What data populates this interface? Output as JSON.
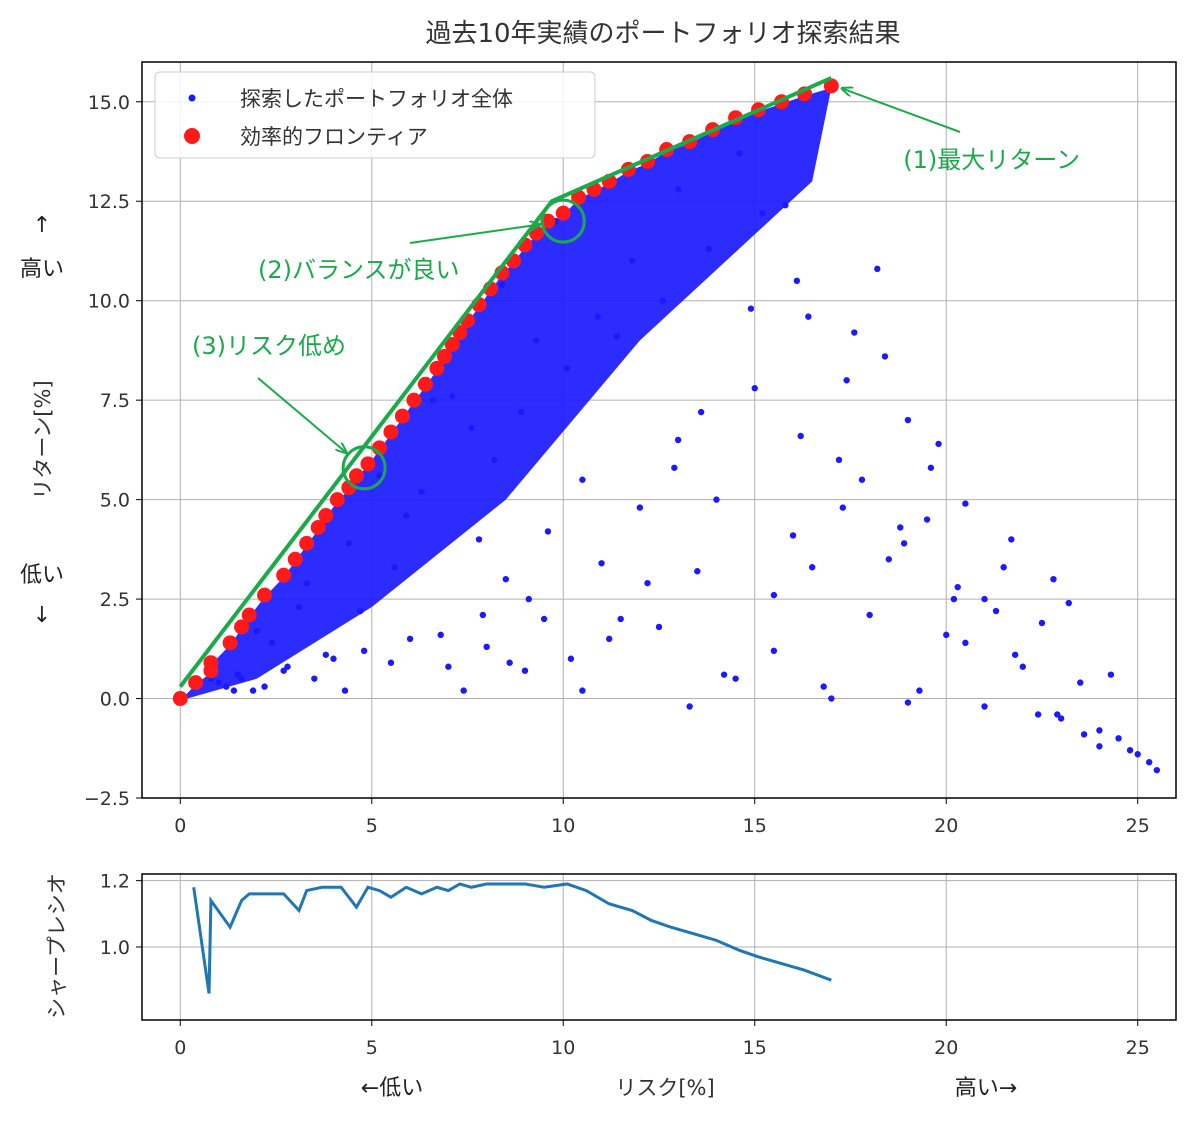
{
  "colors": {
    "scatter": "#1a1aff",
    "frontier": "#ff1a1a",
    "annotation": "#1aaa4a",
    "sharpe_line": "#1f77b4",
    "grid": "#b0b0b0",
    "axes": "#000000"
  },
  "chart_data": [
    {
      "type": "scatter",
      "title": "過去10年実績のポートフォリオ探索結果",
      "xlabel": "",
      "ylabel": "リターン[%]",
      "xlim": [
        -1,
        26
      ],
      "ylim": [
        -2.5,
        16
      ],
      "grid": true,
      "legend_position": "top-left",
      "x_ticks": [
        "0",
        "5",
        "10",
        "15",
        "20",
        "25"
      ],
      "y_ticks": [
        "−2.5",
        "0.0",
        "2.5",
        "5.0",
        "7.5",
        "10.0",
        "12.5",
        "15.0"
      ],
      "x_tick_values": [
        0,
        5,
        10,
        15,
        20,
        25
      ],
      "y_tick_values": [
        -2.5,
        0,
        2.5,
        5,
        7.5,
        10,
        12.5,
        15
      ],
      "series": [
        {
          "name": "探索したポートフォリオ全体",
          "marker": "small-dot",
          "x": [
            0.5,
            1.0,
            1.4,
            1.5,
            2.2,
            2.8,
            3.5,
            4.0,
            4.3,
            4.8,
            5.5,
            6.0,
            7.0,
            7.4,
            7.9,
            8.0,
            8.5,
            9.0,
            9.1,
            9.6,
            10.2,
            10.5,
            11.0,
            11.5,
            12.0,
            12.5,
            13.0,
            13.5,
            14.0,
            14.5,
            15.0,
            15.5,
            16.0,
            16.4,
            17.0,
            17.4,
            17.8,
            18.2,
            18.5,
            19.0,
            19.3,
            19.5,
            19.8,
            20.0,
            20.3,
            20.5,
            21.0,
            21.5,
            22.0,
            22.5,
            23.0,
            23.5,
            24.0,
            24.5,
            25.0,
            25.5,
            16.5,
            17.2,
            18.0,
            19.0,
            20.5,
            21.3,
            22.4,
            23.6,
            24.3,
            22.8,
            21.0,
            18.8,
            16.8,
            15.5,
            14.2,
            13.3,
            12.2,
            11.2,
            10.5,
            9.5,
            8.6,
            7.8,
            6.8,
            5.6,
            4.7,
            3.8,
            2.7,
            1.9,
            1.2,
            0.8,
            6.3,
            7.6,
            8.9,
            10.1,
            11.4,
            12.6,
            13.8,
            15.2,
            16.1,
            17.6,
            18.4,
            19.6,
            21.7,
            23.2,
            24.8,
            25.3,
            14.6,
            15.8,
            13.0,
            11.8,
            10.9,
            9.3,
            8.2,
            7.1,
            5.9,
            4.4,
            3.1,
            2.4,
            1.6,
            13.6,
            12.9,
            14.9,
            16.2,
            17.3,
            18.9,
            20.2,
            21.8,
            22.9,
            24.0,
            9.8,
            8.4,
            7.2,
            6.6,
            5.2,
            3.3,
            2.0
          ],
          "y": [
            0.4,
            0.4,
            0.2,
            0.6,
            0.3,
            0.8,
            0.5,
            1.0,
            0.2,
            1.2,
            0.9,
            1.5,
            0.8,
            0.2,
            2.1,
            1.3,
            3.0,
            0.7,
            2.5,
            4.2,
            1.0,
            5.5,
            3.4,
            2.0,
            4.8,
            1.8,
            6.5,
            3.2,
            5.0,
            0.5,
            7.8,
            2.6,
            4.1,
            9.6,
            0.0,
            8.0,
            5.5,
            10.8,
            3.5,
            7.0,
            0.2,
            4.5,
            6.4,
            1.6,
            2.8,
            4.9,
            -0.2,
            3.3,
            0.8,
            1.9,
            -0.5,
            0.4,
            -1.2,
            -1.0,
            -1.4,
            -1.8,
            3.3,
            6.0,
            2.1,
            -0.1,
            1.4,
            2.2,
            -0.4,
            -0.9,
            0.6,
            3.0,
            2.5,
            4.3,
            0.3,
            1.2,
            0.6,
            -0.2,
            2.9,
            1.5,
            0.2,
            2.0,
            0.9,
            4.0,
            1.6,
            3.3,
            2.2,
            1.1,
            0.7,
            0.2,
            0.3,
            0.5,
            5.2,
            6.8,
            7.2,
            8.3,
            9.1,
            10.0,
            11.3,
            12.2,
            10.5,
            9.2,
            8.6,
            5.8,
            4.0,
            2.4,
            -1.3,
            -1.6,
            13.7,
            12.4,
            12.8,
            11.0,
            9.6,
            9.0,
            6.0,
            7.6,
            4.6,
            3.9,
            2.3,
            1.4,
            0.5,
            7.2,
            5.8,
            9.8,
            6.6,
            4.8,
            3.9,
            2.5,
            1.1,
            -0.4,
            -0.8,
            12.0,
            10.4,
            8.9,
            7.5,
            5.6,
            2.9,
            1.7
          ]
        },
        {
          "name": "効率的フロンティア",
          "marker": "large-dot",
          "x": [
            0.0,
            0.4,
            0.8,
            0.8,
            1.3,
            1.6,
            1.8,
            2.2,
            2.7,
            3.0,
            3.3,
            3.6,
            3.8,
            4.1,
            4.4,
            4.6,
            4.9,
            5.2,
            5.5,
            5.8,
            6.1,
            6.4,
            6.7,
            6.9,
            7.1,
            7.3,
            7.5,
            7.8,
            8.1,
            8.4,
            8.7,
            9.0,
            9.3,
            9.6,
            10.0,
            10.4,
            10.8,
            11.2,
            11.7,
            12.2,
            12.7,
            13.3,
            13.9,
            14.5,
            15.1,
            15.7,
            16.3,
            17.0
          ],
          "y": [
            0.0,
            0.4,
            0.7,
            0.9,
            1.4,
            1.8,
            2.1,
            2.6,
            3.1,
            3.5,
            3.9,
            4.3,
            4.6,
            5.0,
            5.3,
            5.6,
            5.9,
            6.3,
            6.7,
            7.1,
            7.5,
            7.9,
            8.3,
            8.6,
            8.9,
            9.2,
            9.5,
            9.9,
            10.3,
            10.7,
            11.0,
            11.4,
            11.7,
            12.0,
            12.2,
            12.6,
            12.8,
            13.0,
            13.3,
            13.5,
            13.8,
            14.0,
            14.3,
            14.6,
            14.8,
            15.0,
            15.2,
            15.4
          ]
        }
      ],
      "lines": [
        {
          "name": "",
          "x": [
            0.0,
            9.7,
            17.0
          ],
          "y": [
            0.3,
            12.5,
            15.6
          ]
        }
      ],
      "annotations": [
        {
          "text": "(1)最大リターン",
          "point": [
            17.1,
            15.4
          ]
        },
        {
          "text": "(2)バランスが良い",
          "point": [
            10.0,
            12.0
          ]
        },
        {
          "text": "(3)リスク低め",
          "point": [
            4.8,
            5.8
          ]
        }
      ],
      "side_labels": {
        "up_arrow": "↑",
        "high": "高い",
        "low": "低い",
        "down_arrow": "↓"
      }
    },
    {
      "type": "line",
      "title": "",
      "xlabel": "リスク[%]",
      "ylabel": "シャープレシオ",
      "xlim": [
        -1,
        26
      ],
      "ylim": [
        0.78,
        1.22
      ],
      "grid": true,
      "x_ticks": [
        "0",
        "5",
        "10",
        "15",
        "20",
        "25"
      ],
      "y_ticks": [
        "1.0",
        "1.2"
      ],
      "x_tick_values": [
        0,
        5,
        10,
        15,
        20,
        25
      ],
      "y_tick_values": [
        1.0,
        1.2
      ],
      "series": [
        {
          "name": "",
          "x": [
            0.35,
            0.75,
            0.8,
            1.3,
            1.6,
            1.8,
            2.2,
            2.7,
            3.1,
            3.3,
            3.7,
            4.2,
            4.6,
            4.9,
            5.2,
            5.5,
            5.9,
            6.3,
            6.7,
            7.0,
            7.3,
            7.6,
            8.0,
            8.5,
            9.0,
            9.5,
            10.1,
            10.6,
            11.2,
            11.8,
            12.3,
            12.8,
            13.4,
            14.0,
            14.6,
            15.1,
            15.7,
            16.3,
            17.0
          ],
          "y": [
            1.18,
            0.86,
            1.14,
            1.06,
            1.14,
            1.16,
            1.16,
            1.16,
            1.11,
            1.17,
            1.18,
            1.18,
            1.12,
            1.18,
            1.17,
            1.15,
            1.18,
            1.16,
            1.18,
            1.17,
            1.19,
            1.18,
            1.19,
            1.19,
            1.19,
            1.18,
            1.19,
            1.17,
            1.13,
            1.11,
            1.08,
            1.06,
            1.04,
            1.02,
            0.99,
            0.97,
            0.95,
            0.93,
            0.9
          ]
        }
      ]
    }
  ],
  "bottom_labels": {
    "low": "←低い",
    "high": "高い→"
  }
}
